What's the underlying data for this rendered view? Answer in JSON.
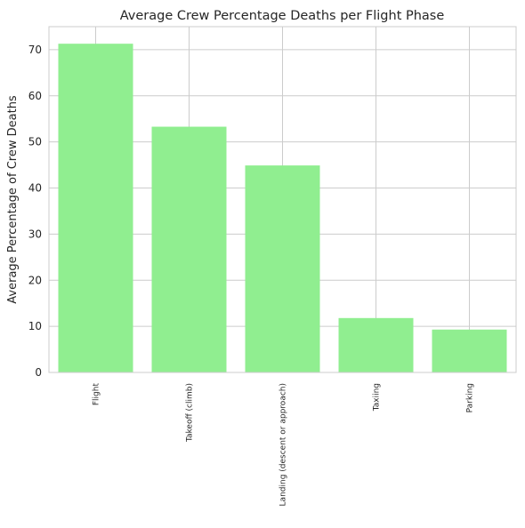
{
  "chart_data": {
    "type": "bar",
    "title": "Average Crew Percentage Deaths per Flight Phase",
    "xlabel": "",
    "ylabel": "Average Percentage of Crew Deaths",
    "categories": [
      "Flight",
      "Takeoff (climb)",
      "Landing (descent or approach)",
      "Taxiing",
      "Parking"
    ],
    "values": [
      71.3,
      53.3,
      44.9,
      11.8,
      9.3
    ],
    "ylim": [
      0,
      75
    ],
    "yticks": [
      0,
      10,
      20,
      30,
      40,
      50,
      60,
      70
    ],
    "grid": true,
    "bar_color": "#90ee90"
  }
}
